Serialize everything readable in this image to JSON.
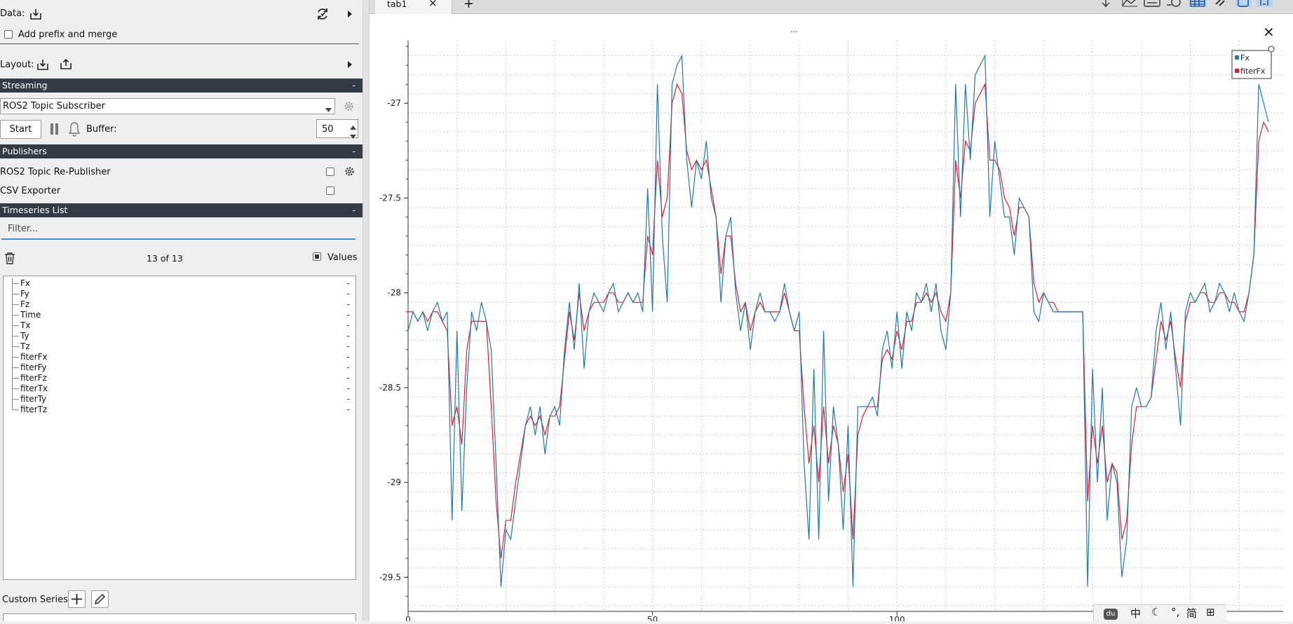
{
  "data_section": {
    "label": "Data:",
    "prefix_merge_label": "Add prefix and merge",
    "prefix_merge_checked": false
  },
  "layout_section": {
    "label": "Layout:"
  },
  "streaming": {
    "header": "Streaming",
    "collapse": "-",
    "source_selected": "ROS2 Topic Subscriber",
    "start_label": "Start",
    "buffer_label": "Buffer:",
    "buffer_value": "50"
  },
  "publishers": {
    "header": "Publishers",
    "collapse": "-",
    "items": [
      {
        "label": "ROS2 Topic Re-Publisher",
        "checked": false,
        "has_settings": true
      },
      {
        "label": "CSV Exporter",
        "checked": false,
        "has_settings": false
      }
    ]
  },
  "timeseries": {
    "header": "Timeseries List",
    "collapse": "-",
    "filter_placeholder": "Filter...",
    "count_label": "13 of 13",
    "values_label": "Values",
    "values_checked": true,
    "items": [
      {
        "name": "Fx",
        "value": "-"
      },
      {
        "name": "Fy",
        "value": "-"
      },
      {
        "name": "Fz",
        "value": "-"
      },
      {
        "name": "Time",
        "value": "-"
      },
      {
        "name": "Tx",
        "value": "-"
      },
      {
        "name": "Ty",
        "value": "-"
      },
      {
        "name": "Tz",
        "value": "-"
      },
      {
        "name": "fiterFx",
        "value": "-"
      },
      {
        "name": "fiterFy",
        "value": "-"
      },
      {
        "name": "fiterFz",
        "value": "-"
      },
      {
        "name": "fiterTx",
        "value": "-"
      },
      {
        "name": "fiterTy",
        "value": "-"
      },
      {
        "name": "fiterTz",
        "value": "-"
      }
    ]
  },
  "custom_series": {
    "label": "Custom Series:"
  },
  "tabs": [
    {
      "label": "tab1",
      "close": "×"
    }
  ],
  "add_tab": "+",
  "plot": {
    "close": "×",
    "top_marker": "...",
    "toolbar_icons": [
      "move-icon",
      "plot-style-icon",
      "list-icon",
      "clock-icon",
      "grid-icon",
      "link-icon",
      "copy-icon",
      "ratio-icon"
    ],
    "ime_bar": [
      "du",
      "中",
      "☾",
      "°,",
      "简",
      "⊞"
    ]
  },
  "colors": {
    "fx": "#1f77b4",
    "fiterFx": "#e0202a",
    "section_header": "#333b45",
    "accent": "#3b8edb"
  },
  "chart_data": {
    "type": "line",
    "title": "",
    "xlabel": "",
    "ylabel": "",
    "xlim": [
      0,
      179
    ],
    "ylim": [
      -29.68,
      -26.67
    ],
    "x_ticks": [
      "0",
      "50",
      "100"
    ],
    "y_ticks": [
      "-27",
      "-27.5",
      "-28",
      "-28.5",
      "-29",
      "-29.5"
    ],
    "y_tick_values": [
      -27,
      -27.5,
      -28,
      -28.5,
      -29,
      -29.5
    ],
    "grid": true,
    "legend": "top-right",
    "series": [
      {
        "name": "Fx",
        "values": [
          -28.2,
          -28.1,
          -28.15,
          -28.1,
          -28.2,
          -28.1,
          -28.05,
          -28.15,
          -28.1,
          -29.2,
          -28.2,
          -29.15,
          -28.5,
          -28.1,
          -28.2,
          -28.05,
          -28.15,
          -28.3,
          -28.9,
          -29.55,
          -29.25,
          -29.3,
          -29.1,
          -28.9,
          -28.7,
          -28.6,
          -28.75,
          -28.6,
          -28.85,
          -28.65,
          -28.6,
          -28.7,
          -28.3,
          -28.05,
          -28.3,
          -27.95,
          -28.4,
          -28.1,
          -28.0,
          -28.05,
          -28.1,
          -28.0,
          -27.95,
          -28.1,
          -28.05,
          -28.0,
          -28.05,
          -28.0,
          -28.1,
          -27.45,
          -28.1,
          -26.9,
          -27.7,
          -28.05,
          -26.9,
          -26.8,
          -26.75,
          -27.3,
          -27.55,
          -27.3,
          -27.4,
          -27.2,
          -27.5,
          -27.6,
          -28.05,
          -27.7,
          -27.6,
          -28.0,
          -28.2,
          -28.05,
          -28.3,
          -28.1,
          -28.0,
          -28.1,
          -28.1,
          -28.15,
          -28.1,
          -27.95,
          -28.1,
          -28.2,
          -28.1,
          -28.9,
          -29.3,
          -28.4,
          -29.3,
          -28.2,
          -29.1,
          -28.6,
          -28.8,
          -29.25,
          -28.7,
          -29.55,
          -28.6,
          -28.6,
          -28.6,
          -28.55,
          -28.65,
          -28.3,
          -28.2,
          -28.4,
          -28.1,
          -28.4,
          -28.1,
          -28.2,
          -28.0,
          -28.05,
          -27.95,
          -28.1,
          -27.95,
          -28.2,
          -28.3,
          -28.0,
          -26.9,
          -27.6,
          -26.9,
          -27.3,
          -26.85,
          -26.8,
          -26.75,
          -27.6,
          -27.2,
          -27.4,
          -27.6,
          -27.6,
          -27.8,
          -27.5,
          -27.55,
          -27.6,
          -28.1,
          -28.15,
          -28.0,
          -28.05,
          -28.1,
          -28.1,
          -28.1,
          -28.1,
          -28.1,
          -28.1,
          -28.1,
          -29.55,
          -28.4,
          -29.0,
          -28.5,
          -29.2,
          -28.9,
          -29.0,
          -29.5,
          -29.3,
          -28.6,
          -28.5,
          -28.6,
          -28.6,
          -28.55,
          -28.2,
          -28.05,
          -28.3,
          -28.1,
          -28.4,
          -28.7,
          -28.1,
          -28.0,
          -28.05,
          -28.0,
          -27.95,
          -28.1,
          -28.05,
          -27.95,
          -28.0,
          -28.1,
          -28.0,
          -28.1,
          -28.15,
          -28.0,
          -27.8,
          -26.9,
          -27.0,
          -27.1
        ]
      },
      {
        "name": "fiterFx",
        "values": [
          -28.1,
          -28.1,
          -28.15,
          -28.1,
          -28.15,
          -28.1,
          -28.1,
          -28.15,
          -28.2,
          -28.7,
          -28.6,
          -28.8,
          -28.3,
          -28.15,
          -28.15,
          -28.15,
          -28.15,
          -28.6,
          -29.1,
          -29.4,
          -29.2,
          -29.2,
          -29.0,
          -28.85,
          -28.7,
          -28.65,
          -28.7,
          -28.65,
          -28.75,
          -28.65,
          -28.65,
          -28.6,
          -28.35,
          -28.1,
          -28.25,
          -28.0,
          -28.2,
          -28.1,
          -28.05,
          -28.05,
          -28.05,
          -28.0,
          -28.0,
          -28.05,
          -28.05,
          -28.0,
          -28.05,
          -28.05,
          -28.05,
          -27.7,
          -27.8,
          -27.3,
          -27.6,
          -27.5,
          -27.0,
          -26.9,
          -26.95,
          -27.25,
          -27.35,
          -27.3,
          -27.35,
          -27.3,
          -27.45,
          -27.6,
          -27.9,
          -27.7,
          -27.7,
          -27.95,
          -28.1,
          -28.05,
          -28.2,
          -28.1,
          -28.05,
          -28.1,
          -28.1,
          -28.1,
          -28.1,
          -28.0,
          -28.1,
          -28.2,
          -28.2,
          -28.6,
          -28.9,
          -28.7,
          -29.0,
          -28.6,
          -28.9,
          -28.7,
          -28.8,
          -29.05,
          -28.85,
          -29.3,
          -28.75,
          -28.65,
          -28.6,
          -28.6,
          -28.6,
          -28.35,
          -28.3,
          -28.35,
          -28.2,
          -28.3,
          -28.15,
          -28.15,
          -28.05,
          -28.05,
          -28.0,
          -28.05,
          -28.0,
          -28.1,
          -28.15,
          -28.0,
          -27.3,
          -27.5,
          -27.2,
          -27.25,
          -27.0,
          -26.95,
          -26.9,
          -27.3,
          -27.3,
          -27.35,
          -27.5,
          -27.55,
          -27.7,
          -27.55,
          -27.55,
          -27.6,
          -27.95,
          -28.05,
          -28.0,
          -28.05,
          -28.05,
          -28.1,
          -28.1,
          -28.1,
          -28.1,
          -28.1,
          -28.1,
          -29.1,
          -28.7,
          -28.9,
          -28.7,
          -29.0,
          -28.9,
          -28.95,
          -29.3,
          -29.2,
          -28.8,
          -28.6,
          -28.6,
          -28.6,
          -28.55,
          -28.35,
          -28.15,
          -28.25,
          -28.15,
          -28.35,
          -28.5,
          -28.15,
          -28.05,
          -28.05,
          -28.0,
          -28.0,
          -28.05,
          -28.05,
          -28.0,
          -28.0,
          -28.05,
          -28.05,
          -28.1,
          -28.1,
          -28.0,
          -27.8,
          -27.2,
          -27.1,
          -27.15
        ]
      }
    ]
  }
}
